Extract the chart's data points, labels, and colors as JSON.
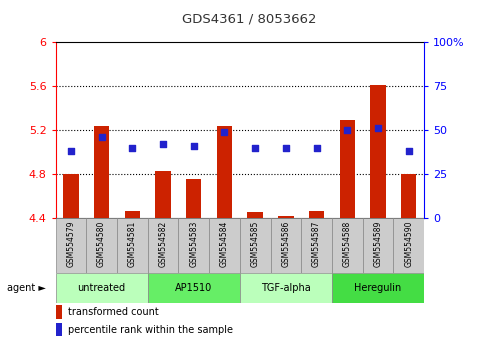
{
  "title": "GDS4361 / 8053662",
  "samples": [
    "GSM554579",
    "GSM554580",
    "GSM554581",
    "GSM554582",
    "GSM554583",
    "GSM554584",
    "GSM554585",
    "GSM554586",
    "GSM554587",
    "GSM554588",
    "GSM554589",
    "GSM554590"
  ],
  "bar_values": [
    4.8,
    5.24,
    4.46,
    4.83,
    4.75,
    5.24,
    4.45,
    4.42,
    4.46,
    5.29,
    5.61,
    4.8
  ],
  "dot_values": [
    38,
    46,
    40,
    42,
    41,
    49,
    40,
    40,
    40,
    50,
    51,
    38
  ],
  "ylim_left": [
    4.4,
    6.0
  ],
  "ylim_right": [
    0,
    100
  ],
  "yticks_left": [
    4.4,
    4.8,
    5.2,
    5.6,
    6.0
  ],
  "yticks_right": [
    0,
    25,
    50,
    75,
    100
  ],
  "ytick_labels_left": [
    "4.4",
    "4.8",
    "5.2",
    "5.6",
    "6"
  ],
  "ytick_labels_right": [
    "0",
    "25",
    "50",
    "75",
    "100%"
  ],
  "bar_color": "#cc2200",
  "dot_color": "#2222cc",
  "bar_bottom": 4.4,
  "groups": [
    {
      "label": "untreated",
      "start": 0,
      "end": 3,
      "color": "#bbffbb"
    },
    {
      "label": "AP1510",
      "start": 3,
      "end": 6,
      "color": "#66ee66"
    },
    {
      "label": "TGF-alpha",
      "start": 6,
      "end": 9,
      "color": "#bbffbb"
    },
    {
      "label": "Heregulin",
      "start": 9,
      "end": 12,
      "color": "#44dd44"
    }
  ],
  "agent_label": "agent ►",
  "legend_bar": "transformed count",
  "legend_dot": "percentile rank within the sample",
  "plot_bg_color": "#ffffff",
  "grid_dotted_at": [
    4.8,
    5.2,
    5.6
  ],
  "sample_box_color": "#cccccc",
  "title_color": "#333333"
}
